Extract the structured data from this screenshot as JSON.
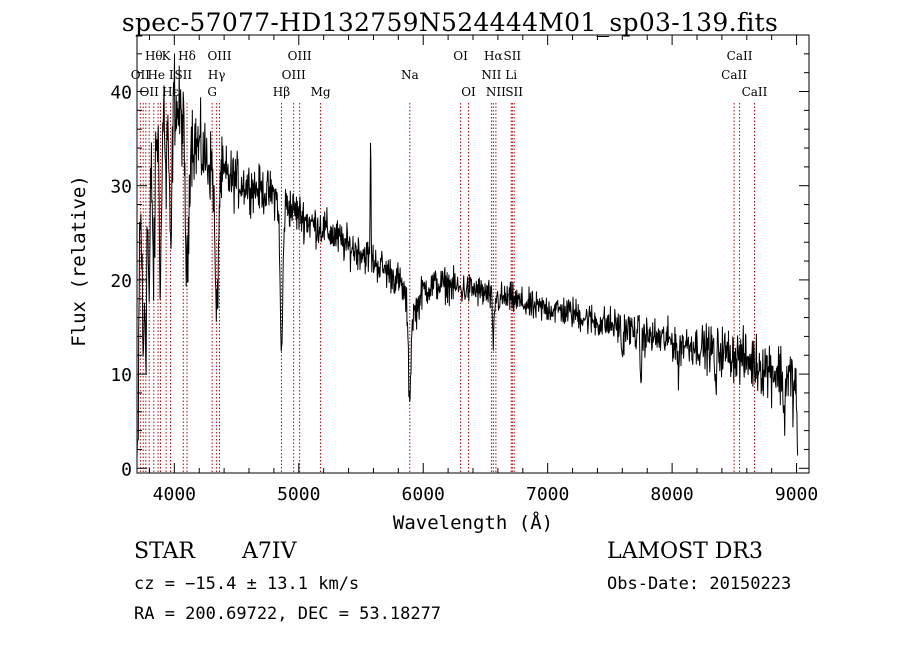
{
  "title": "spec-57077-HD132759N524444M01_sp03-139.fits",
  "info": {
    "object_type": "STAR",
    "spectral_class": "A7IV",
    "survey": "LAMOST DR3",
    "cz": "cz = −15.4 ± 13.1 km/s",
    "obs_date": "Obs-Date: 20150223",
    "coords": "RA = 200.69722, DEC =  53.18277"
  },
  "chart_data": {
    "type": "line",
    "title": "spec-57077-HD132759N524444M01_sp03-139.fits",
    "xlabel": "Wavelength (Å)",
    "ylabel": "Flux (relative)",
    "xlim": [
      3700,
      9100
    ],
    "ylim": [
      -0.5,
      46
    ],
    "xticks": [
      4000,
      5000,
      6000,
      7000,
      8000,
      9000
    ],
    "yticks": [
      0,
      10,
      20,
      30,
      40
    ],
    "grid": false,
    "series": [
      {
        "name": "spectrum",
        "anchors": [
          [
            3700,
            0.5
          ],
          [
            3710,
            8
          ],
          [
            3720,
            24
          ],
          [
            3740,
            28
          ],
          [
            3760,
            30
          ],
          [
            3790,
            31
          ],
          [
            3820,
            33
          ],
          [
            3860,
            36
          ],
          [
            3890,
            38
          ],
          [
            3930,
            39
          ],
          [
            3960,
            40
          ],
          [
            3990,
            41
          ],
          [
            4020,
            38
          ],
          [
            4060,
            37
          ],
          [
            4100,
            36
          ],
          [
            4150,
            35
          ],
          [
            4200,
            34
          ],
          [
            4250,
            33
          ],
          [
            4300,
            32
          ],
          [
            4400,
            31
          ],
          [
            4500,
            30.5
          ],
          [
            4600,
            30
          ],
          [
            4700,
            29.5
          ],
          [
            4800,
            29
          ],
          [
            4900,
            28
          ],
          [
            5000,
            27
          ],
          [
            5100,
            26
          ],
          [
            5200,
            25.5
          ],
          [
            5300,
            24.5
          ],
          [
            5400,
            23.5
          ],
          [
            5500,
            23
          ],
          [
            5600,
            22
          ],
          [
            5700,
            21
          ],
          [
            5800,
            20
          ],
          [
            5850,
            18.5
          ],
          [
            5900,
            16
          ],
          [
            5950,
            17
          ],
          [
            6000,
            19
          ],
          [
            6100,
            19.5
          ],
          [
            6200,
            19.5
          ],
          [
            6300,
            19
          ],
          [
            6400,
            19
          ],
          [
            6500,
            18.5
          ],
          [
            6600,
            18
          ],
          [
            6700,
            18
          ],
          [
            6800,
            17.5
          ],
          [
            6900,
            17
          ],
          [
            7000,
            17
          ],
          [
            7200,
            16.5
          ],
          [
            7400,
            15.5
          ],
          [
            7600,
            15
          ],
          [
            7800,
            14
          ],
          [
            8000,
            13.5
          ],
          [
            8200,
            13
          ],
          [
            8400,
            12.5
          ],
          [
            8600,
            11.5
          ],
          [
            8800,
            10.5
          ],
          [
            8950,
            9.5
          ],
          [
            9000,
            8
          ],
          [
            9010,
            1
          ]
        ],
        "absorption": [
          {
            "x": 3750,
            "depth": 18,
            "width": 10
          },
          {
            "x": 3771,
            "depth": 16,
            "width": 10
          },
          {
            "x": 3798,
            "depth": 14,
            "width": 10
          },
          {
            "x": 3835,
            "depth": 14,
            "width": 12
          },
          {
            "x": 3889,
            "depth": 16,
            "width": 14
          },
          {
            "x": 3934,
            "depth": 10,
            "width": 8
          },
          {
            "x": 3970,
            "depth": 18,
            "width": 16
          },
          {
            "x": 4102,
            "depth": 16,
            "width": 18
          },
          {
            "x": 4340,
            "depth": 16,
            "width": 18
          },
          {
            "x": 4861,
            "depth": 16,
            "width": 16
          },
          {
            "x": 5890,
            "depth": 9,
            "width": 14
          },
          {
            "x": 6563,
            "depth": 5,
            "width": 10
          },
          {
            "x": 7600,
            "depth": 3,
            "width": 10
          },
          {
            "x": 7750,
            "depth": 5,
            "width": 8
          },
          {
            "x": 8050,
            "depth": 4,
            "width": 8
          },
          {
            "x": 8350,
            "depth": 5,
            "width": 8
          },
          {
            "x": 8900,
            "depth": 5,
            "width": 8
          }
        ],
        "emission": [
          {
            "x": 5577,
            "height": 14,
            "width": 4
          }
        ],
        "noise": [
          [
            3700,
            5
          ],
          [
            4200,
            3.5
          ],
          [
            4600,
            2
          ],
          [
            5500,
            1.6
          ],
          [
            7000,
            1.3
          ],
          [
            8200,
            1.8
          ],
          [
            9000,
            3
          ]
        ],
        "sample_step": 3.5
      }
    ],
    "line_markers": [
      {
        "x": 3727,
        "label": "OII",
        "row": 1
      },
      {
        "x": 3750,
        "label": "",
        "row": 0
      },
      {
        "x": 3771,
        "label": "",
        "row": 0
      },
      {
        "x": 3798,
        "label": "OII",
        "row": 2
      },
      {
        "x": 3835,
        "label": "Hθ",
        "row": 0
      },
      {
        "x": 3869,
        "label": "",
        "row": 0
      },
      {
        "x": 3889,
        "label": "He I",
        "row": 1
      },
      {
        "x": 3934,
        "label": "K",
        "row": 0
      },
      {
        "x": 3969,
        "label": "Hε",
        "row": 2
      },
      {
        "x": 4072,
        "label": "SII",
        "row": 1
      },
      {
        "x": 4102,
        "label": "Hδ",
        "row": 0
      },
      {
        "x": 4304,
        "label": "G",
        "row": 2
      },
      {
        "x": 4340,
        "label": "Hγ",
        "row": 1
      },
      {
        "x": 4363,
        "label": "OIII",
        "row": 0
      },
      {
        "x": 4861,
        "label": "Hβ",
        "row": 2
      },
      {
        "x": 4959,
        "label": "OIII",
        "row": 1
      },
      {
        "x": 5007,
        "label": "OIII",
        "row": 0
      },
      {
        "x": 5175,
        "label": "Mg",
        "row": 2
      },
      {
        "x": 5892,
        "label": "Na",
        "row": 1
      },
      {
        "x": 6300,
        "label": "OI",
        "row": 0
      },
      {
        "x": 6364,
        "label": "OI",
        "row": 2
      },
      {
        "x": 6548,
        "label": "NII",
        "row": 1
      },
      {
        "x": 6563,
        "label": "Hα",
        "row": 0
      },
      {
        "x": 6584,
        "label": "NII",
        "row": 2
      },
      {
        "x": 6707,
        "label": "Li",
        "row": 1
      },
      {
        "x": 6716,
        "label": "SII",
        "row": 0
      },
      {
        "x": 6731,
        "label": "SII",
        "row": 2
      },
      {
        "x": 8498,
        "label": "CaII",
        "row": 1
      },
      {
        "x": 8542,
        "label": "CaII",
        "row": 0
      },
      {
        "x": 8662,
        "label": "CaII",
        "row": 2
      }
    ]
  }
}
